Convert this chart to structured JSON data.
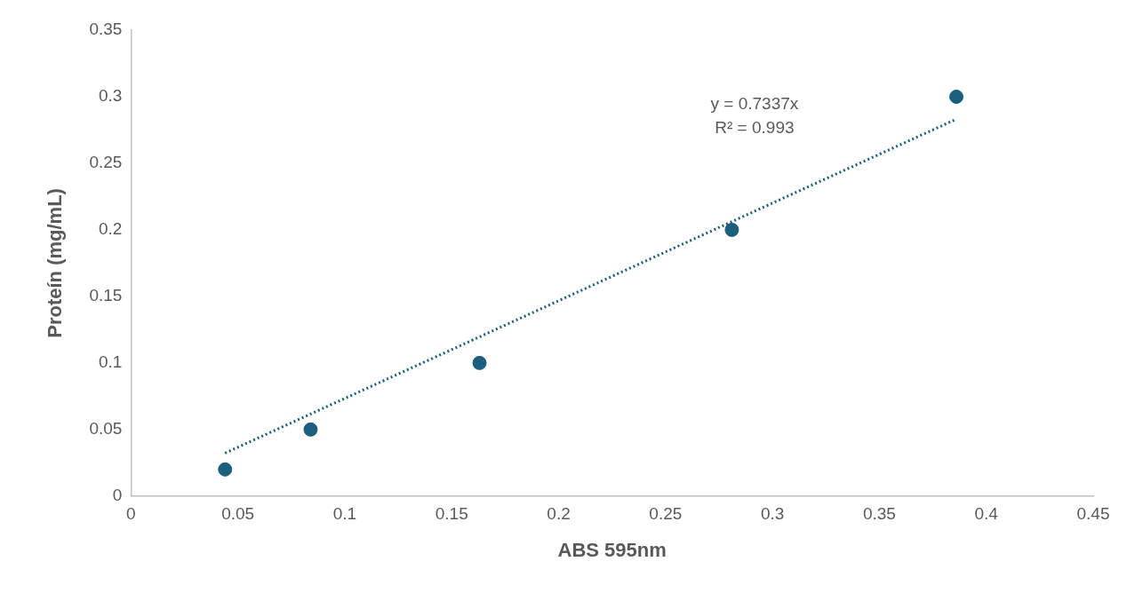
{
  "chart_data": {
    "type": "scatter",
    "xlabel": "ABS 595nm",
    "ylabel": "Proteín (mg/mL)",
    "series": [
      {
        "type": "scatter",
        "marker": "circle",
        "color": "#1b5e7d",
        "x": [
          0.044,
          0.084,
          0.163,
          0.281,
          0.386
        ],
        "values": [
          0.02,
          0.05,
          0.1,
          0.2,
          0.3
        ]
      },
      {
        "type": "line",
        "color": "#1b5e7d",
        "line_style": "dotted",
        "x": [
          0.044,
          0.386
        ],
        "values": [
          0.0323,
          0.2832
        ]
      }
    ],
    "annotations": [
      "y = 0.7337x",
      "R² = 0.993"
    ],
    "xlim": [
      0,
      0.45
    ],
    "xticks": [
      0,
      0.05,
      0.1,
      0.15,
      0.2,
      0.25,
      0.3,
      0.35,
      0.4,
      0.45
    ],
    "ylim": [
      0,
      0.35
    ],
    "yticks": [
      0,
      0.05,
      0.1,
      0.15,
      0.2,
      0.25,
      0.3,
      0.35
    ],
    "grid": false,
    "legend": false
  }
}
